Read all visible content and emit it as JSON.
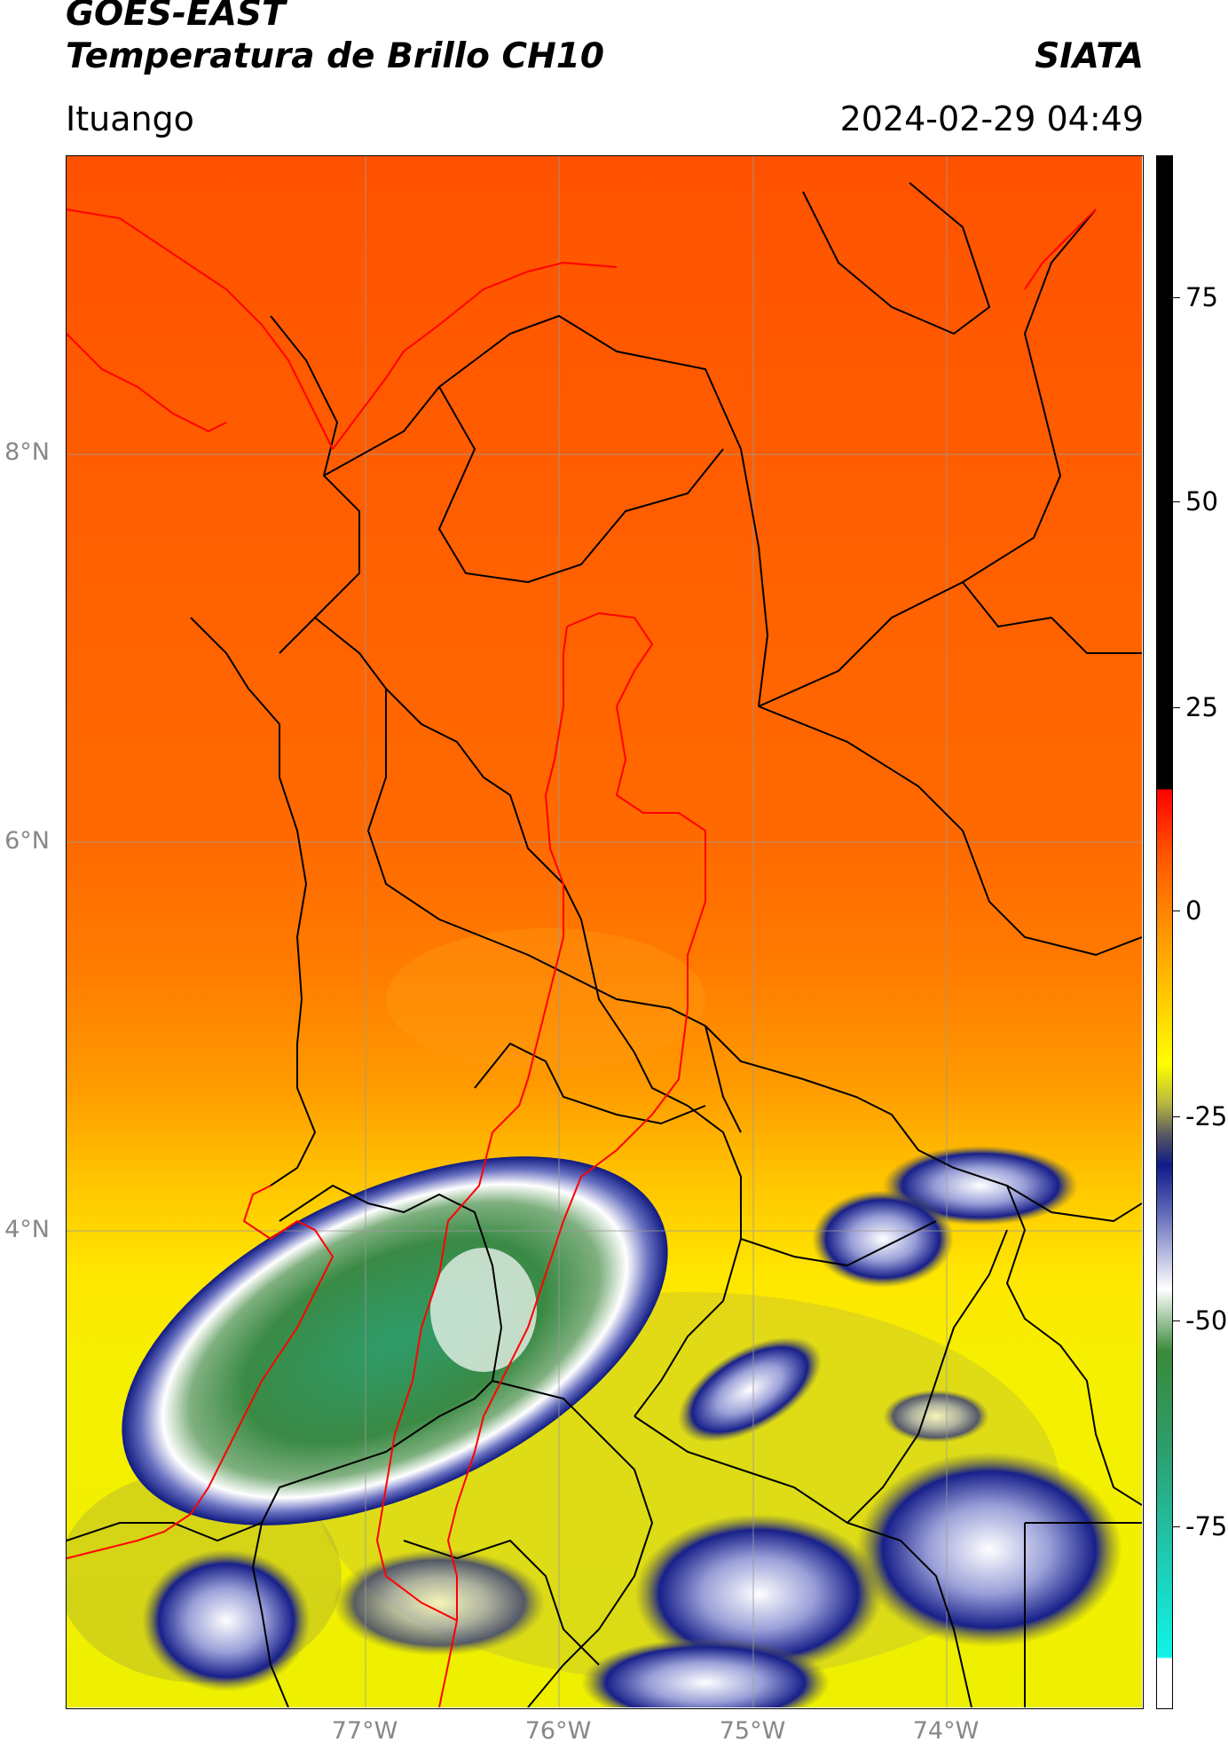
{
  "header": {
    "title_line1": "GOES-EAST",
    "title_line2": "Temperatura de Brillo CH10",
    "brand": "SIATA",
    "location": "Ituango",
    "datetime": "2024-02-29 04:49"
  },
  "map": {
    "lat_labels": [
      "8°N",
      "6°N",
      "4°N"
    ],
    "lon_labels": [
      "77°W",
      "76°W",
      "75°W",
      "74°W"
    ],
    "gridlines": true,
    "gridline_color": "#9a9a9a",
    "boundary_color": "#000000",
    "basin_color": "#ff0000"
  },
  "colorbar": {
    "tick_labels": [
      "75",
      "50",
      "25",
      "0",
      "-25",
      "-50",
      "-75"
    ],
    "colors": {
      "black": "#000000",
      "red": "#ff0000",
      "orange": "#ff8c00",
      "yellow": "#ffff00",
      "navy": "#0f1a88",
      "white": "#ffffff",
      "green": "#3a8a3a",
      "teal": "#20c8b0",
      "cyan": "#10f5e8"
    }
  }
}
